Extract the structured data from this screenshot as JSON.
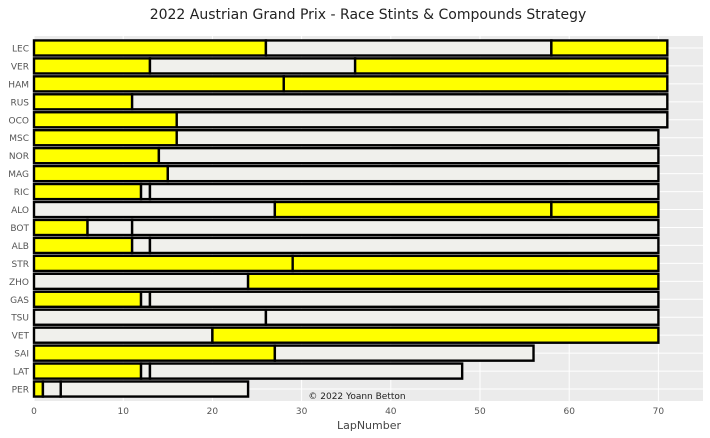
{
  "chart_data": {
    "type": "bar",
    "orientation": "horizontal-stacked-stints",
    "title": "2022 Austrian Grand Prix - Race Stints & Compounds Strategy",
    "xlabel": "LapNumber",
    "ylabel": "",
    "xlim": [
      0,
      75
    ],
    "xticks": [
      0,
      10,
      20,
      30,
      40,
      50,
      60,
      70
    ],
    "grid": true,
    "annotation": "© 2022 Yoann Betton",
    "compound_colors": {
      "MEDIUM": "#ffff00",
      "HARD": "#f0f0ec"
    },
    "drivers": [
      {
        "driver": "LEC",
        "stints": [
          {
            "compound": "MEDIUM",
            "start": 0,
            "end": 26
          },
          {
            "compound": "HARD",
            "start": 26,
            "end": 58
          },
          {
            "compound": "MEDIUM",
            "start": 58,
            "end": 71
          }
        ]
      },
      {
        "driver": "VER",
        "stints": [
          {
            "compound": "MEDIUM",
            "start": 0,
            "end": 13
          },
          {
            "compound": "HARD",
            "start": 13,
            "end": 36
          },
          {
            "compound": "MEDIUM",
            "start": 36,
            "end": 71
          }
        ]
      },
      {
        "driver": "HAM",
        "stints": [
          {
            "compound": "MEDIUM",
            "start": 0,
            "end": 28
          },
          {
            "compound": "MEDIUM",
            "start": 28,
            "end": 71
          }
        ]
      },
      {
        "driver": "RUS",
        "stints": [
          {
            "compound": "MEDIUM",
            "start": 0,
            "end": 11
          },
          {
            "compound": "HARD",
            "start": 11,
            "end": 71
          }
        ]
      },
      {
        "driver": "OCO",
        "stints": [
          {
            "compound": "MEDIUM",
            "start": 0,
            "end": 16
          },
          {
            "compound": "HARD",
            "start": 16,
            "end": 71
          }
        ]
      },
      {
        "driver": "MSC",
        "stints": [
          {
            "compound": "MEDIUM",
            "start": 0,
            "end": 16
          },
          {
            "compound": "HARD",
            "start": 16,
            "end": 70
          }
        ]
      },
      {
        "driver": "NOR",
        "stints": [
          {
            "compound": "MEDIUM",
            "start": 0,
            "end": 14
          },
          {
            "compound": "HARD",
            "start": 14,
            "end": 70
          }
        ]
      },
      {
        "driver": "MAG",
        "stints": [
          {
            "compound": "MEDIUM",
            "start": 0,
            "end": 15
          },
          {
            "compound": "HARD",
            "start": 15,
            "end": 70
          }
        ]
      },
      {
        "driver": "RIC",
        "stints": [
          {
            "compound": "MEDIUM",
            "start": 0,
            "end": 12
          },
          {
            "compound": "HARD",
            "start": 12,
            "end": 13
          },
          {
            "compound": "HARD",
            "start": 13,
            "end": 70
          }
        ]
      },
      {
        "driver": "ALO",
        "stints": [
          {
            "compound": "HARD",
            "start": 0,
            "end": 27
          },
          {
            "compound": "MEDIUM",
            "start": 27,
            "end": 58
          },
          {
            "compound": "MEDIUM",
            "start": 58,
            "end": 70
          }
        ]
      },
      {
        "driver": "BOT",
        "stints": [
          {
            "compound": "MEDIUM",
            "start": 0,
            "end": 6
          },
          {
            "compound": "HARD",
            "start": 6,
            "end": 11
          },
          {
            "compound": "HARD",
            "start": 11,
            "end": 70
          }
        ]
      },
      {
        "driver": "ALB",
        "stints": [
          {
            "compound": "MEDIUM",
            "start": 0,
            "end": 11
          },
          {
            "compound": "HARD",
            "start": 11,
            "end": 13
          },
          {
            "compound": "HARD",
            "start": 13,
            "end": 70
          }
        ]
      },
      {
        "driver": "STR",
        "stints": [
          {
            "compound": "MEDIUM",
            "start": 0,
            "end": 29
          },
          {
            "compound": "MEDIUM",
            "start": 29,
            "end": 70
          }
        ]
      },
      {
        "driver": "ZHO",
        "stints": [
          {
            "compound": "HARD",
            "start": 0,
            "end": 24
          },
          {
            "compound": "MEDIUM",
            "start": 24,
            "end": 70
          }
        ]
      },
      {
        "driver": "GAS",
        "stints": [
          {
            "compound": "MEDIUM",
            "start": 0,
            "end": 12
          },
          {
            "compound": "HARD",
            "start": 12,
            "end": 13
          },
          {
            "compound": "HARD",
            "start": 13,
            "end": 70
          }
        ]
      },
      {
        "driver": "TSU",
        "stints": [
          {
            "compound": "HARD",
            "start": 0,
            "end": 26
          },
          {
            "compound": "HARD",
            "start": 26,
            "end": 70
          }
        ]
      },
      {
        "driver": "VET",
        "stints": [
          {
            "compound": "HARD",
            "start": 0,
            "end": 20
          },
          {
            "compound": "MEDIUM",
            "start": 20,
            "end": 70
          }
        ]
      },
      {
        "driver": "SAI",
        "stints": [
          {
            "compound": "MEDIUM",
            "start": 0,
            "end": 27
          },
          {
            "compound": "HARD",
            "start": 27,
            "end": 56
          }
        ]
      },
      {
        "driver": "LAT",
        "stints": [
          {
            "compound": "MEDIUM",
            "start": 0,
            "end": 12
          },
          {
            "compound": "HARD",
            "start": 12,
            "end": 13
          },
          {
            "compound": "HARD",
            "start": 13,
            "end": 48
          }
        ]
      },
      {
        "driver": "PER",
        "stints": [
          {
            "compound": "MEDIUM",
            "start": 0,
            "end": 1
          },
          {
            "compound": "HARD",
            "start": 1,
            "end": 3
          },
          {
            "compound": "HARD",
            "start": 3,
            "end": 24
          }
        ]
      }
    ]
  }
}
